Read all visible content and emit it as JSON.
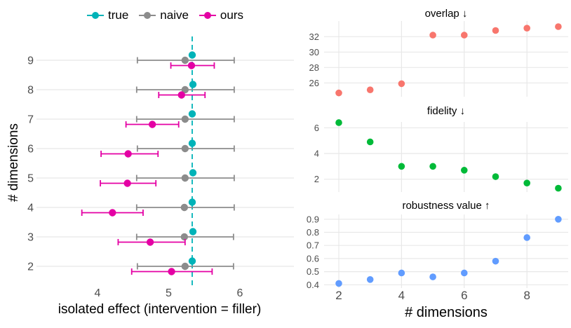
{
  "chart_data": [
    {
      "id": "isolated-effect",
      "type": "scatter",
      "title": "",
      "xlabel": "isolated effect (intervention = filler)",
      "ylabel": "# dimensions",
      "x_ticks": [
        4,
        5,
        6
      ],
      "x_tick_labels": [
        "4",
        "5",
        "6"
      ],
      "xlim": [
        3.17,
        6.62
      ],
      "dims": [
        9,
        8,
        7,
        6,
        5,
        4,
        3,
        2
      ],
      "reference_line": {
        "x": 5.33,
        "style": "dashed",
        "color": "#00B3B8"
      },
      "legend_position": "top",
      "grid": "horizontal-major",
      "series": [
        {
          "name": "true",
          "color": "#00B3B8",
          "values": [
            5.33,
            5.34,
            5.33,
            5.33,
            5.34,
            5.33,
            5.34,
            5.33
          ]
        },
        {
          "name": "naive",
          "color": "#8C8C8C",
          "values": [
            5.23,
            5.23,
            5.23,
            5.23,
            5.23,
            5.22,
            5.22,
            5.23
          ],
          "lo": [
            4.56,
            4.55,
            4.55,
            4.56,
            4.55,
            4.55,
            4.55,
            4.56
          ],
          "hi": [
            5.92,
            5.92,
            5.92,
            5.92,
            5.92,
            5.92,
            5.91,
            5.91
          ]
        },
        {
          "name": "ours",
          "color": "#E400A4",
          "values": [
            5.32,
            5.18,
            4.77,
            4.43,
            4.42,
            4.21,
            4.74,
            5.04
          ],
          "lo": [
            5.03,
            4.86,
            4.4,
            4.05,
            4.04,
            3.78,
            4.29,
            4.48
          ],
          "hi": [
            5.64,
            5.51,
            5.14,
            4.85,
            4.82,
            4.64,
            5.23,
            5.61
          ]
        }
      ]
    },
    {
      "id": "overlap",
      "type": "scatter",
      "title": "overlap ↓",
      "color": "#F8766D",
      "x": [
        2,
        3,
        4,
        5,
        6,
        7,
        8,
        9
      ],
      "y": [
        24.7,
        25.1,
        25.9,
        32.2,
        32.2,
        32.8,
        33.1,
        33.3
      ],
      "y_ticks": [
        26,
        28,
        30,
        32
      ],
      "y_tick_labels": [
        "26",
        "28",
        "30",
        "32"
      ],
      "ylim": [
        24.2,
        33.9
      ],
      "grid": "major"
    },
    {
      "id": "fidelity",
      "type": "scatter",
      "title": "fidelity ↓",
      "color": "#00BA38",
      "x": [
        2,
        3,
        4,
        5,
        6,
        7,
        8,
        9
      ],
      "y": [
        6.4,
        4.9,
        3.0,
        3.0,
        2.7,
        2.2,
        1.7,
        1.3
      ],
      "y_ticks": [
        2,
        4,
        6
      ],
      "y_tick_labels": [
        "2",
        "4",
        "6"
      ],
      "ylim": [
        0.9,
        6.6
      ],
      "grid": "major"
    },
    {
      "id": "robustness",
      "type": "scatter",
      "title": "robustness value ↑",
      "color": "#619CFF",
      "x": [
        2,
        3,
        4,
        5,
        6,
        7,
        8,
        9
      ],
      "y": [
        0.41,
        0.44,
        0.49,
        0.46,
        0.49,
        0.58,
        0.76,
        0.9
      ],
      "y_ticks": [
        0.4,
        0.5,
        0.6,
        0.7,
        0.8,
        0.9
      ],
      "y_tick_labels": [
        "0.4",
        "0.5",
        "0.6",
        "0.7",
        "0.8",
        "0.9"
      ],
      "ylim": [
        0.37,
        0.95
      ],
      "xlabel": "# dimensions",
      "x_ticks": [
        2,
        4,
        6,
        8
      ],
      "x_tick_labels": [
        "2",
        "4",
        "6",
        "8"
      ],
      "grid": "major"
    }
  ],
  "colors": {
    "true": "#00B3B8",
    "naive": "#8C8C8C",
    "ours": "#E400A4",
    "overlap": "#F8766D",
    "fidelity": "#00BA38",
    "robustness": "#619CFF",
    "gridline": "#E8E8E8",
    "tick_text": "#4D4D4D"
  }
}
